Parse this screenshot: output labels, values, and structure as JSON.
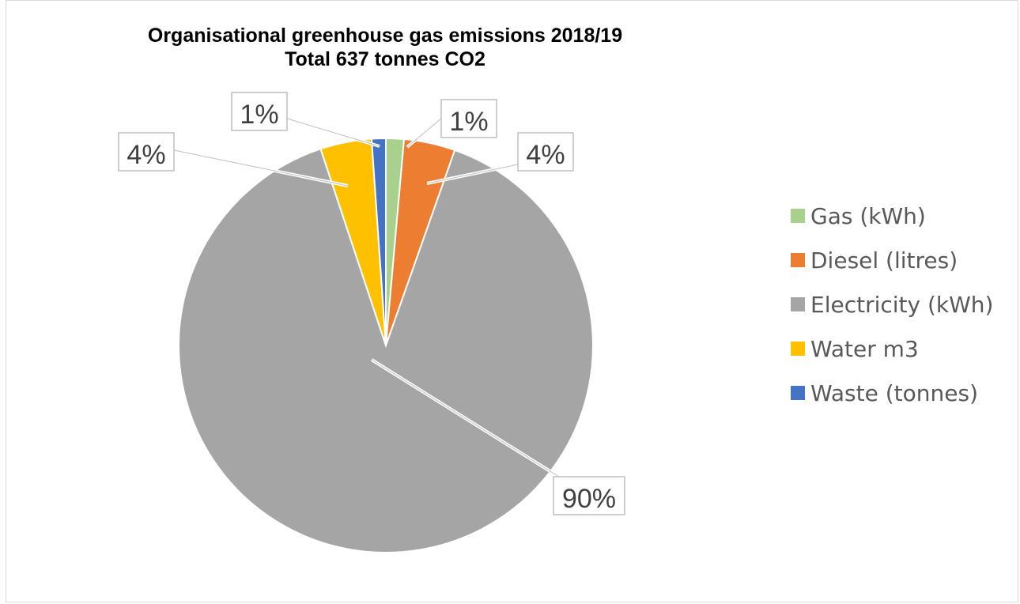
{
  "chart_data": {
    "type": "pie",
    "title": "Organisational greenhouse gas emissions 2018/19",
    "subtitle": "Total 637 tonnes CO2",
    "slices": [
      {
        "name": "Gas (kWh)",
        "value": 1.4,
        "label": "1%",
        "color": "#a9d18e"
      },
      {
        "name": "Diesel (litres)",
        "value": 4,
        "label": "4%",
        "color": "#ed7d31"
      },
      {
        "name": "Electricity (kWh)",
        "value": 89.5,
        "label": "90%",
        "color": "#a5a5a5"
      },
      {
        "name": "Water m3",
        "value": 4,
        "label": "4%",
        "color": "#ffc000"
      },
      {
        "name": "Waste (tonnes)",
        "value": 1.1,
        "label": "1%",
        "color": "#4472c4"
      }
    ],
    "legend_position": "right"
  }
}
